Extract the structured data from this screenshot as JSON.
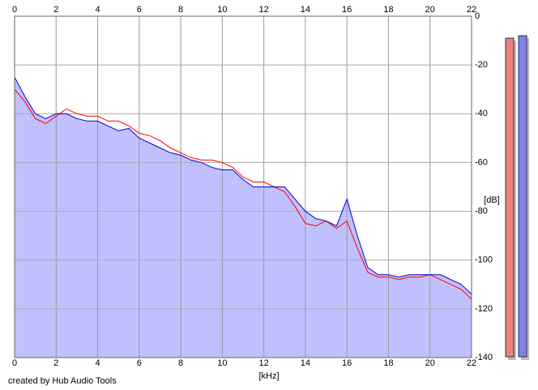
{
  "chart_data": {
    "type": "line",
    "x": [
      0,
      0.5,
      1,
      1.5,
      2,
      2.5,
      3,
      3.5,
      4,
      4.5,
      5,
      5.5,
      6,
      6.5,
      7,
      7.5,
      8,
      8.5,
      9,
      9.5,
      10,
      10.5,
      11,
      11.5,
      12,
      12.5,
      13,
      13.5,
      14,
      14.5,
      15,
      15.5,
      16,
      16.5,
      17,
      17.5,
      18,
      18.5,
      19,
      19.5,
      20,
      20.5,
      21,
      21.5,
      22
    ],
    "series": [
      {
        "color": "#ff0000",
        "values": [
          -30,
          -35,
          -42,
          -44,
          -41,
          -38,
          -40,
          -41,
          -41,
          -43,
          -43,
          -45,
          -48,
          -49,
          -51,
          -54,
          -56,
          -58,
          -59,
          -59,
          -60,
          -62,
          -66,
          -68,
          -68,
          -70,
          -72,
          -78,
          -85,
          -86,
          -84,
          -87,
          -84,
          -95,
          -105,
          -107,
          -107,
          -108,
          -107,
          -107,
          -106,
          -108,
          -110,
          -112,
          -116
        ]
      },
      {
        "color": "#0000cc",
        "fill": "#c0c0ff",
        "values": [
          -25,
          -33,
          -40,
          -42,
          -40,
          -40,
          -42,
          -43,
          -43,
          -45,
          -47,
          -46,
          -50,
          -52,
          -54,
          -56,
          -57,
          -59,
          -60,
          -62,
          -63,
          -63,
          -67,
          -70,
          -70,
          -70,
          -70,
          -75,
          -80,
          -83,
          -84,
          -86,
          -75,
          -90,
          -103,
          -106,
          -106,
          -107,
          -106,
          -106,
          -106,
          -106,
          -108,
          -110,
          -114
        ]
      }
    ],
    "meters": [
      {
        "color": "#f08080",
        "value": -9
      },
      {
        "color": "#8080f0",
        "value": -8
      }
    ],
    "xlim": [
      0,
      22
    ],
    "xticks": [
      0,
      2,
      4,
      6,
      8,
      10,
      12,
      14,
      16,
      18,
      20,
      22
    ],
    "ylim": [
      -140,
      0
    ],
    "yticks": [
      0,
      -20,
      -40,
      -60,
      -80,
      -100,
      -120,
      -140
    ],
    "xlabel": "[kHz]",
    "ylabel": "[dB]",
    "credit": "created by Hub Audio Tools",
    "grid": true
  }
}
